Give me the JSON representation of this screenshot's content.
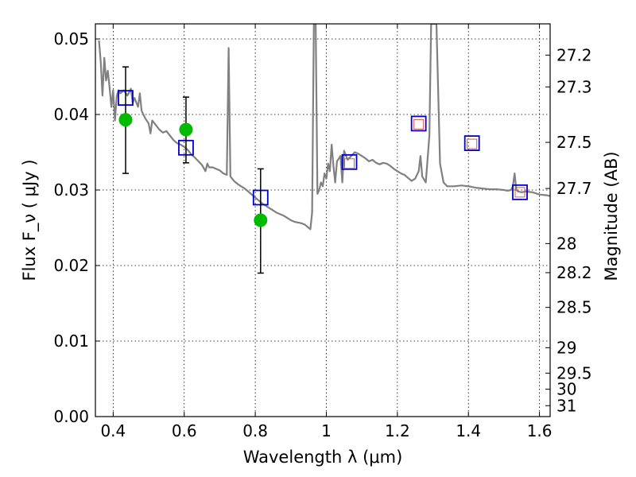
{
  "chart_data": {
    "type": "scatter",
    "xlabel": "Wavelength  λ (μm)",
    "ylabel": "Flux  F_ν  ( μJy )",
    "y2label": "Magnitude (AB)",
    "xlim": [
      0.35,
      1.63
    ],
    "ylim": [
      0.0,
      0.052
    ],
    "grid": true,
    "x_ticks": [
      {
        "value": 0.4,
        "label": "0.4"
      },
      {
        "value": 0.6,
        "label": "0.6"
      },
      {
        "value": 0.8,
        "label": "0.8"
      },
      {
        "value": 1.0,
        "label": "1"
      },
      {
        "value": 1.2,
        "label": "1.2"
      },
      {
        "value": 1.4,
        "label": "1.4"
      },
      {
        "value": 1.6,
        "label": "1.6"
      }
    ],
    "y_ticks": [
      {
        "value": 0.0,
        "label": "0.00"
      },
      {
        "value": 0.01,
        "label": "0.01"
      },
      {
        "value": 0.02,
        "label": "0.02"
      },
      {
        "value": 0.03,
        "label": "0.03"
      },
      {
        "value": 0.04,
        "label": "0.04"
      },
      {
        "value": 0.05,
        "label": "0.05"
      }
    ],
    "y2_ticks": [
      {
        "mag": 27.2,
        "label": "27.2"
      },
      {
        "mag": 27.3,
        "label": "27.3"
      },
      {
        "mag": 27.5,
        "label": "27.5"
      },
      {
        "mag": 27.7,
        "label": "27.7"
      },
      {
        "mag": 28.0,
        "label": "28"
      },
      {
        "mag": 28.2,
        "label": "28.2"
      },
      {
        "mag": 28.5,
        "label": "28.5"
      },
      {
        "mag": 29.0,
        "label": "29"
      },
      {
        "mag": 29.5,
        "label": "29.5"
      },
      {
        "mag": 30.0,
        "label": "30"
      },
      {
        "mag": 31.0,
        "label": "31"
      }
    ],
    "series": [
      {
        "kind": "line",
        "color": "#808080",
        "points": [
          [
            0.36,
            0.0498
          ],
          [
            0.365,
            0.047
          ],
          [
            0.37,
            0.0425
          ],
          [
            0.375,
            0.0475
          ],
          [
            0.38,
            0.0445
          ],
          [
            0.385,
            0.0458
          ],
          [
            0.39,
            0.0435
          ],
          [
            0.395,
            0.041
          ],
          [
            0.4,
            0.0432
          ],
          [
            0.405,
            0.0392
          ],
          [
            0.41,
            0.0424
          ],
          [
            0.415,
            0.0432
          ],
          [
            0.42,
            0.0428
          ],
          [
            0.43,
            0.0432
          ],
          [
            0.44,
            0.0425
          ],
          [
            0.45,
            0.0434
          ],
          [
            0.455,
            0.0415
          ],
          [
            0.46,
            0.0422
          ],
          [
            0.47,
            0.041
          ],
          [
            0.475,
            0.0428
          ],
          [
            0.48,
            0.0405
          ],
          [
            0.49,
            0.0395
          ],
          [
            0.5,
            0.0388
          ],
          [
            0.505,
            0.0375
          ],
          [
            0.51,
            0.0392
          ],
          [
            0.52,
            0.0386
          ],
          [
            0.53,
            0.038
          ],
          [
            0.54,
            0.0376
          ],
          [
            0.55,
            0.0378
          ],
          [
            0.56,
            0.0372
          ],
          [
            0.57,
            0.0366
          ],
          [
            0.58,
            0.0362
          ],
          [
            0.59,
            0.036
          ],
          [
            0.6,
            0.0357
          ],
          [
            0.61,
            0.0353
          ],
          [
            0.62,
            0.0347
          ],
          [
            0.63,
            0.0343
          ],
          [
            0.64,
            0.0338
          ],
          [
            0.65,
            0.0333
          ],
          [
            0.66,
            0.0325
          ],
          [
            0.665,
            0.0335
          ],
          [
            0.67,
            0.033
          ],
          [
            0.68,
            0.033
          ],
          [
            0.69,
            0.0328
          ],
          [
            0.7,
            0.0326
          ],
          [
            0.71,
            0.0322
          ],
          [
            0.72,
            0.032
          ],
          [
            0.725,
            0.0488
          ],
          [
            0.73,
            0.0318
          ],
          [
            0.74,
            0.0312
          ],
          [
            0.75,
            0.0308
          ],
          [
            0.76,
            0.0305
          ],
          [
            0.77,
            0.0302
          ],
          [
            0.78,
            0.0298
          ],
          [
            0.79,
            0.0294
          ],
          [
            0.8,
            0.029
          ],
          [
            0.81,
            0.0286
          ],
          [
            0.82,
            0.0282
          ],
          [
            0.83,
            0.0279
          ],
          [
            0.84,
            0.0276
          ],
          [
            0.85,
            0.0273
          ],
          [
            0.86,
            0.027
          ],
          [
            0.87,
            0.0268
          ],
          [
            0.88,
            0.0266
          ],
          [
            0.89,
            0.0263
          ],
          [
            0.9,
            0.026
          ],
          [
            0.91,
            0.0258
          ],
          [
            0.92,
            0.0257
          ],
          [
            0.93,
            0.0256
          ],
          [
            0.94,
            0.0254
          ],
          [
            0.95,
            0.025
          ],
          [
            0.955,
            0.0248
          ],
          [
            0.96,
            0.027
          ],
          [
            0.965,
            0.052
          ],
          [
            0.97,
            0.052
          ],
          [
            0.975,
            0.0295
          ],
          [
            0.98,
            0.03
          ],
          [
            0.985,
            0.031
          ],
          [
            0.99,
            0.0305
          ],
          [
            0.995,
            0.0322
          ],
          [
            1.0,
            0.0315
          ],
          [
            1.005,
            0.0335
          ],
          [
            1.01,
            0.0325
          ],
          [
            1.015,
            0.036
          ],
          [
            1.02,
            0.0332
          ],
          [
            1.025,
            0.031
          ],
          [
            1.03,
            0.0338
          ],
          [
            1.04,
            0.0345
          ],
          [
            1.045,
            0.031
          ],
          [
            1.05,
            0.0352
          ],
          [
            1.06,
            0.034
          ],
          [
            1.07,
            0.0345
          ],
          [
            1.08,
            0.035
          ],
          [
            1.09,
            0.0348
          ],
          [
            1.1,
            0.0345
          ],
          [
            1.11,
            0.0342
          ],
          [
            1.12,
            0.0338
          ],
          [
            1.13,
            0.034
          ],
          [
            1.14,
            0.0336
          ],
          [
            1.15,
            0.0334
          ],
          [
            1.16,
            0.0336
          ],
          [
            1.17,
            0.0335
          ],
          [
            1.18,
            0.0332
          ],
          [
            1.19,
            0.0328
          ],
          [
            1.2,
            0.0325
          ],
          [
            1.21,
            0.0322
          ],
          [
            1.22,
            0.032
          ],
          [
            1.23,
            0.0316
          ],
          [
            1.24,
            0.0312
          ],
          [
            1.25,
            0.0315
          ],
          [
            1.26,
            0.0325
          ],
          [
            1.265,
            0.0345
          ],
          [
            1.27,
            0.0318
          ],
          [
            1.28,
            0.031
          ],
          [
            1.29,
            0.0372
          ],
          [
            1.295,
            0.052
          ],
          [
            1.31,
            0.052
          ],
          [
            1.32,
            0.0335
          ],
          [
            1.33,
            0.031
          ],
          [
            1.34,
            0.0305
          ],
          [
            1.36,
            0.0305
          ],
          [
            1.38,
            0.0306
          ],
          [
            1.4,
            0.0305
          ],
          [
            1.42,
            0.0303
          ],
          [
            1.44,
            0.0302
          ],
          [
            1.46,
            0.0301
          ],
          [
            1.48,
            0.0301
          ],
          [
            1.5,
            0.03
          ],
          [
            1.51,
            0.0299
          ],
          [
            1.52,
            0.03
          ],
          [
            1.525,
            0.0305
          ],
          [
            1.53,
            0.0322
          ],
          [
            1.535,
            0.03
          ],
          [
            1.54,
            0.0298
          ],
          [
            1.55,
            0.0297
          ],
          [
            1.56,
            0.0298
          ],
          [
            1.58,
            0.0297
          ],
          [
            1.6,
            0.0294
          ],
          [
            1.62,
            0.0293
          ],
          [
            1.63,
            0.0292
          ]
        ]
      },
      {
        "kind": "blue_squares",
        "color": "#0000cc",
        "points": [
          [
            0.435,
            0.0422
          ],
          [
            0.605,
            0.0356
          ],
          [
            0.815,
            0.029
          ],
          [
            1.065,
            0.0337
          ],
          [
            1.26,
            0.0388
          ],
          [
            1.41,
            0.0362
          ],
          [
            1.545,
            0.0297
          ]
        ]
      },
      {
        "kind": "red_squares",
        "color": "#e05050",
        "points": [
          [
            1.065,
            0.0335
          ],
          [
            1.26,
            0.0387
          ],
          [
            1.41,
            0.0361
          ],
          [
            1.545,
            0.0297
          ]
        ]
      },
      {
        "kind": "green_circles",
        "color": "#00bb00",
        "points": [
          [
            0.435,
            0.0393
          ],
          [
            0.605,
            0.038
          ],
          [
            0.815,
            0.026
          ]
        ],
        "errors": [
          [
            0.0322,
            0.0463
          ],
          [
            0.0336,
            0.0423
          ],
          [
            0.019,
            0.0328
          ]
        ]
      }
    ]
  }
}
